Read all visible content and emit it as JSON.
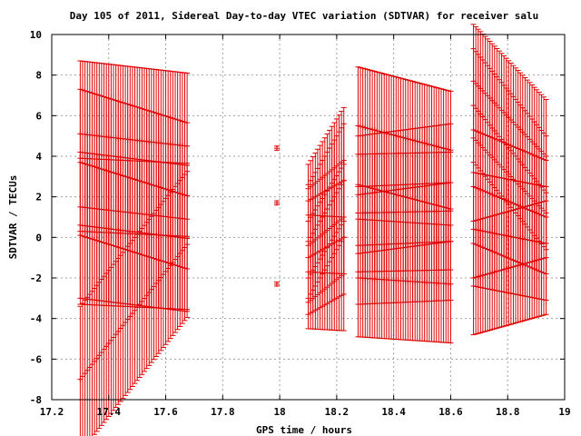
{
  "chart_data": {
    "type": "scatter",
    "title": "Day 105 of 2011, Sidereal Day-to-day VTEC variation (SDTVAR) for receiver salu",
    "xlabel": "GPS time / hours",
    "ylabel": "SDTVAR / TECUs",
    "xlim": [
      17.2,
      19
    ],
    "ylim": [
      -8,
      10
    ],
    "x_ticks": [
      "17.2",
      "17.4",
      "17.6",
      "17.8",
      "18",
      "18.2",
      "18.4",
      "18.6",
      "18.8",
      "19"
    ],
    "y_ticks": [
      "-8",
      "-6",
      "-4",
      "-2",
      "0",
      "2",
      "4",
      "6",
      "8",
      "10"
    ],
    "grid": true,
    "legend": "none",
    "color": "#e00000",
    "error_bars": true,
    "sampling_interval_hours": 0.0083,
    "segments": [
      {
        "x_start": 17.3,
        "x_end": 17.675,
        "error": 3.6,
        "series": [
          {
            "y_start": 5.1,
            "y_end": 4.5
          },
          {
            "y_start": 3.7,
            "y_end": 2.05
          },
          {
            "y_start": 0.6,
            "y_end": -0.05
          },
          {
            "y_start": 0.3,
            "y_end": 0.05
          },
          {
            "y_start": -7.0,
            "y_end": -0.35
          }
        ]
      },
      {
        "x_start": 17.99,
        "x_end": 17.99,
        "error": 0.1,
        "series": [
          {
            "y_start": 4.4,
            "y_end": 4.4
          },
          {
            "y_start": 1.7,
            "y_end": 1.7
          },
          {
            "y_start": -2.3,
            "y_end": -2.3
          }
        ]
      },
      {
        "x_start": 18.1,
        "x_end": 18.225,
        "error": 2.8,
        "series": [
          {
            "y_start": 0.8,
            "y_end": 3.6
          },
          {
            "y_start": -0.2,
            "y_end": 2.8
          },
          {
            "y_start": -0.4,
            "y_end": 1.0
          },
          {
            "y_start": -1.0,
            "y_end": 0.0
          },
          {
            "y_start": -1.7,
            "y_end": -1.8
          }
        ]
      },
      {
        "x_start": 18.275,
        "x_end": 18.6,
        "error": 2.9,
        "series": [
          {
            "y_start": 5.5,
            "y_end": 4.3
          },
          {
            "y_start": 2.1,
            "y_end": 2.7
          },
          {
            "y_start": 1.2,
            "y_end": 1.3
          },
          {
            "y_start": -0.4,
            "y_end": -0.2
          },
          {
            "y_start": -2.0,
            "y_end": -2.3
          }
        ]
      },
      {
        "x_start": 18.68,
        "x_end": 18.935,
        "error": 2.8,
        "series": [
          {
            "y_start": 7.7,
            "y_end": 4.0
          },
          {
            "y_start": 6.5,
            "y_end": 2.2
          },
          {
            "y_start": 2.5,
            "y_end": 1.0
          },
          {
            "y_start": 0.4,
            "y_end": -0.3
          },
          {
            "y_start": -2.0,
            "y_end": -1.0
          }
        ]
      }
    ]
  }
}
